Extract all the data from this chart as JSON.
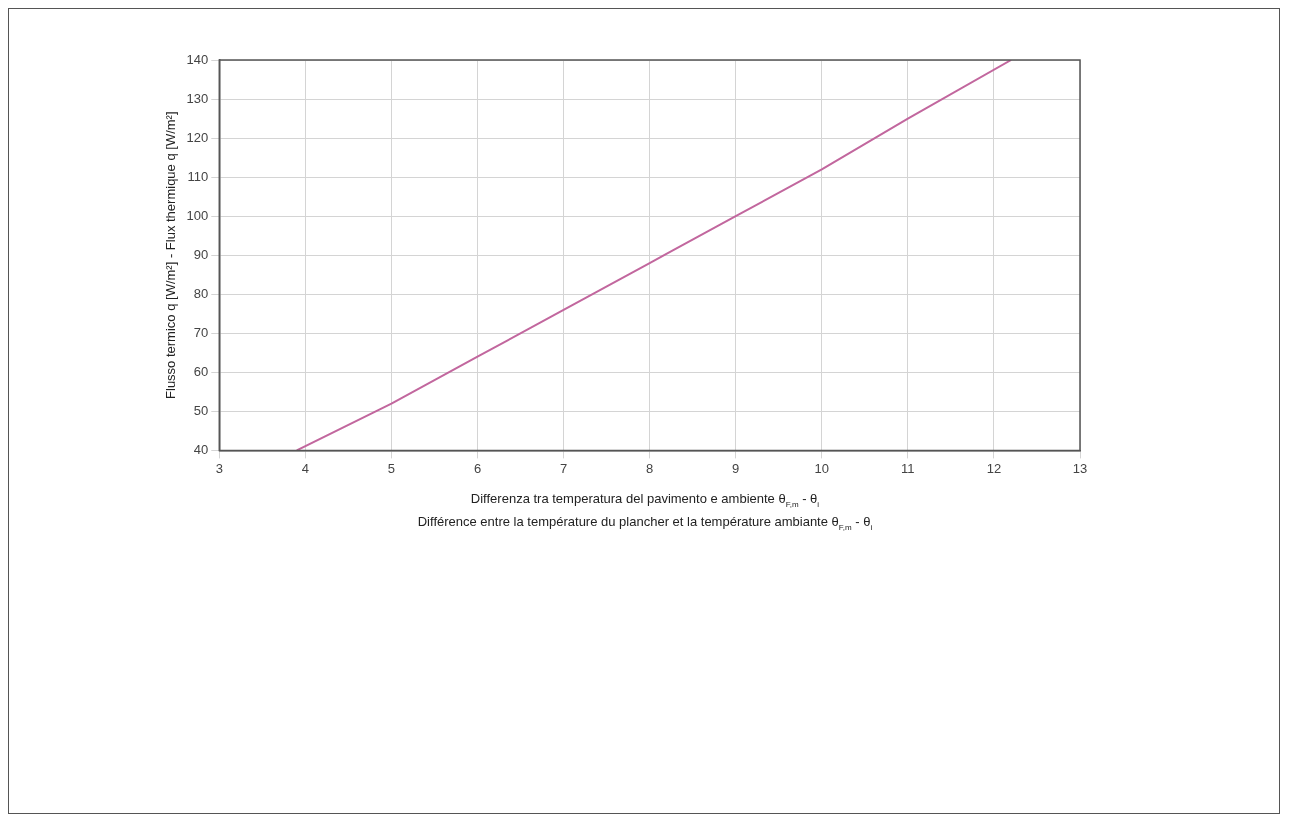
{
  "chart_data": {
    "type": "line",
    "xlabel": "Differenza tra temperatura del pavimento e ambiente θ$_{F,m}$ - θ$_{i}$\nDifférence entre la température du plancher et la température ambiante θ$_{F,m}$ - θ$_{i}$",
    "ylabel": "Flusso termico q [W/m²] - Flux thermique q [W/m²]",
    "series": [
      {
        "color": "#c2679e",
        "x": [
          3.9,
          5,
          6,
          7,
          8,
          9,
          10,
          11,
          12.2
        ],
        "values": [
          40,
          52,
          64,
          76,
          88,
          100,
          112,
          125,
          140
        ]
      }
    ],
    "xlim": [
      3,
      13
    ],
    "xticks": [
      3,
      4,
      5,
      6,
      7,
      8,
      9,
      10,
      11,
      12,
      13
    ],
    "ylim": [
      40,
      140
    ],
    "yticks": [
      40,
      50,
      60,
      70,
      80,
      90,
      100,
      110,
      120,
      130,
      140
    ],
    "grid": true,
    "legend": false,
    "marker": "none",
    "line_style": "solid"
  }
}
